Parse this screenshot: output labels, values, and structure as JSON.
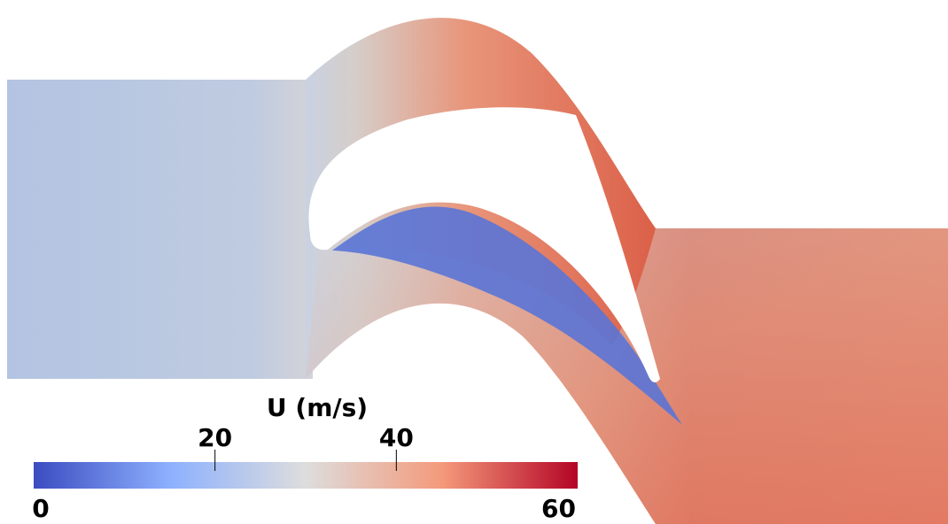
{
  "chart_data": {
    "type": "colorbar",
    "title": "U (m/s)",
    "xlim": [
      0,
      60
    ],
    "xticks": [
      0,
      20,
      40,
      60
    ],
    "colormap": [
      "#3b4cc0",
      "#8db0fe",
      "#dddddd",
      "#f49a7b",
      "#b40426"
    ]
  }
}
